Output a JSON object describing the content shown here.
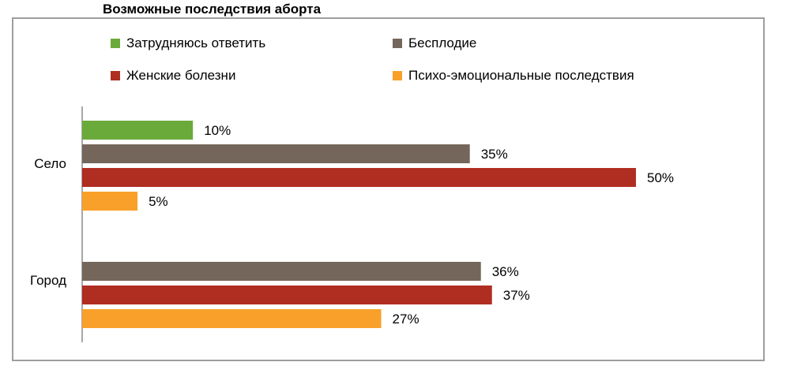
{
  "chart_data": {
    "type": "bar",
    "orientation": "horizontal",
    "title": "Возможные последствия аборта",
    "categories": [
      "Село",
      "Город"
    ],
    "series": [
      {
        "name": "Затрудняюсь ответить",
        "color": "#6aaa3a",
        "values": [
          10,
          null
        ],
        "labels": [
          "10%",
          ""
        ]
      },
      {
        "name": "Бесплодие",
        "color": "#74665a",
        "values": [
          35,
          36
        ],
        "labels": [
          "35%",
          "36%"
        ]
      },
      {
        "name": "Женские болезни",
        "color": "#b02d22",
        "values": [
          50,
          37
        ],
        "labels": [
          "50%",
          "37%"
        ]
      },
      {
        "name": "Психо-эмоциональные последствия",
        "color": "#f9a02b",
        "values": [
          5,
          27
        ],
        "labels": [
          "5%",
          "27%"
        ]
      }
    ],
    "xlim": [
      0,
      50
    ],
    "grid": false,
    "legend_position": "top"
  }
}
